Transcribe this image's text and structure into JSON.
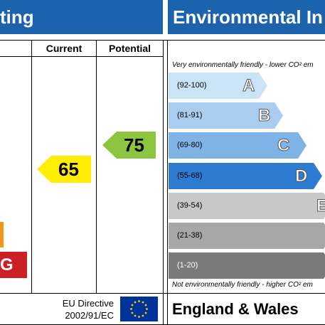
{
  "energy_panel": {
    "title_fragment": "ting",
    "col_current": "Current",
    "col_potential": "Potential",
    "current_rating": "65",
    "current_color": "#ffee00",
    "potential_rating": "75",
    "potential_color": "#8cc63f",
    "band_f_color": "#f7941d",
    "band_g_color": "#cc1f26",
    "band_g_letter": "G",
    "directive_line1": "EU Directive",
    "directive_line2": "2002/91/EC"
  },
  "environmental_panel": {
    "title_fragment": "Environmental In",
    "top_note": "Very environmentally friendly - lower CO² em",
    "bottom_note": "Not environmentally friendly - higher CO² em",
    "region": "England & Wales",
    "bands": [
      {
        "range": "(92-100)",
        "letter": "A",
        "color": "#c9e4f7"
      },
      {
        "range": "(81-91)",
        "letter": "B",
        "color": "#a9cdef"
      },
      {
        "range": "(69-80)",
        "letter": "C",
        "color": "#7fb3e6"
      },
      {
        "range": "(55-68)",
        "letter": "D",
        "color": "#2f7bd0"
      },
      {
        "range": "(39-54)",
        "letter": "E",
        "color": "#c8c8c8"
      },
      {
        "range": "(21-38)",
        "letter": "",
        "color": "#a7a7a7"
      },
      {
        "range": "(1-20)",
        "letter": "",
        "color": "#7a7a7a"
      }
    ]
  }
}
